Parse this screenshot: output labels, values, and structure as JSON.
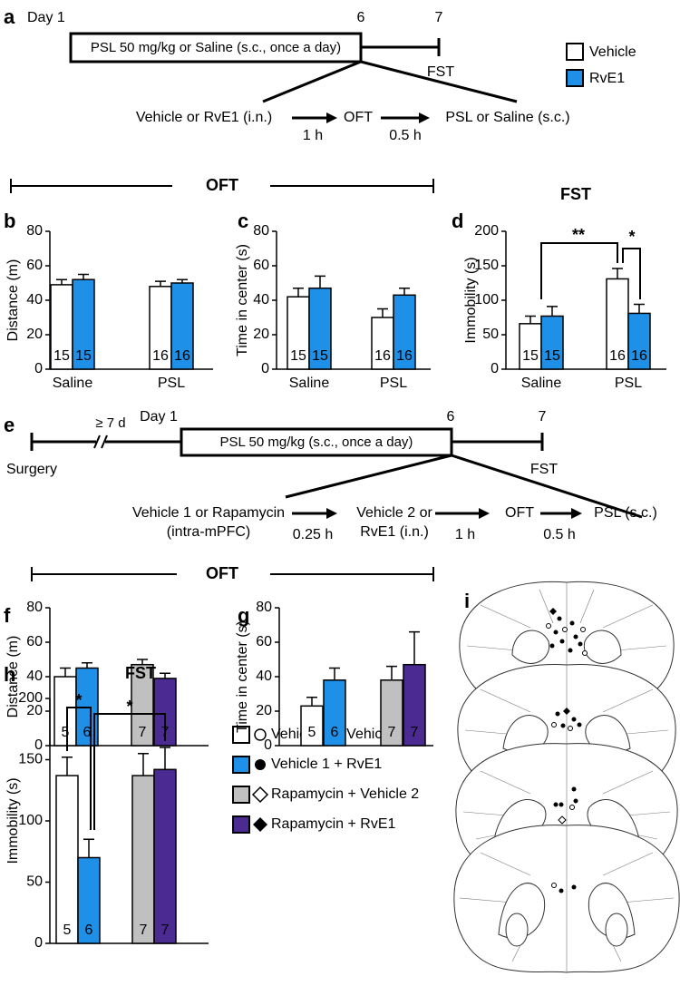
{
  "panel_labels": [
    "a",
    "b",
    "c",
    "d",
    "e",
    "f",
    "g",
    "h",
    "i"
  ],
  "timeline_a": {
    "day_labels": [
      "Day 1",
      "6",
      "7"
    ],
    "box": "PSL 50 mg/kg or Saline (s.c., once a day)",
    "end": "FST",
    "steps": [
      "Vehicle or RvE1 (i.n.)",
      "OFT",
      "PSL or Saline (s.c.)"
    ],
    "intervals": [
      "1 h",
      "0.5 h"
    ]
  },
  "legend_a": {
    "items": [
      "Vehicle",
      "RvE1"
    ]
  },
  "section_headers": [
    "OFT",
    "OFT"
  ],
  "chart_data": [
    {
      "type": "bar",
      "ylabel": "Distance (m)",
      "categories": [
        "Saline",
        "PSL"
      ],
      "series": [
        {
          "color": "#ffffff",
          "values": [
            49,
            48
          ],
          "errors": [
            3,
            3
          ],
          "n": [
            15,
            16
          ]
        },
        {
          "color": "#1e90e8",
          "values": [
            52,
            50
          ],
          "errors": [
            3,
            2
          ],
          "n": [
            15,
            16
          ]
        }
      ],
      "ylim": [
        0,
        80
      ],
      "yticks": [
        0,
        20,
        40,
        60,
        80
      ]
    },
    {
      "type": "bar",
      "ylabel": "Time in center (s)",
      "categories": [
        "Saline",
        "PSL"
      ],
      "series": [
        {
          "color": "#ffffff",
          "values": [
            42,
            30
          ],
          "errors": [
            5,
            5
          ],
          "n": [
            15,
            16
          ]
        },
        {
          "color": "#1e90e8",
          "values": [
            47,
            43
          ],
          "errors": [
            7,
            4
          ],
          "n": [
            15,
            16
          ]
        }
      ],
      "ylim": [
        0,
        80
      ],
      "yticks": [
        0,
        20,
        40,
        60,
        80
      ]
    },
    {
      "type": "bar",
      "title": "FST",
      "ylabel": "Immobility (s)",
      "categories": [
        "Saline",
        "PSL"
      ],
      "series": [
        {
          "color": "#ffffff",
          "values": [
            66,
            131
          ],
          "errors": [
            11,
            15
          ],
          "n": [
            15,
            16
          ]
        },
        {
          "color": "#1e90e8",
          "values": [
            77,
            81
          ],
          "errors": [
            14,
            13
          ],
          "n": [
            15,
            16
          ]
        }
      ],
      "ylim": [
        0,
        200
      ],
      "yticks": [
        0,
        50,
        100,
        150,
        200
      ],
      "annotations": [
        "**",
        "*"
      ]
    },
    {
      "type": "bar",
      "ylabel": "Distance (m)",
      "values": [
        40,
        45,
        47,
        39
      ],
      "errors": [
        5,
        3,
        3,
        3
      ],
      "n": [
        5,
        6,
        7,
        7
      ],
      "colors": [
        "#ffffff",
        "#1e90e8",
        "#c0c0c0",
        "#4b2a91"
      ],
      "ylim": [
        0,
        80
      ],
      "yticks": [
        0,
        20,
        40,
        60,
        80
      ]
    },
    {
      "type": "bar",
      "ylabel": "Time in center (s)",
      "values": [
        23,
        38,
        38,
        47
      ],
      "errors": [
        5,
        7,
        8,
        19
      ],
      "n": [
        5,
        6,
        7,
        7
      ],
      "colors": [
        "#ffffff",
        "#1e90e8",
        "#c0c0c0",
        "#4b2a91"
      ],
      "ylim": [
        0,
        80
      ],
      "yticks": [
        0,
        20,
        40,
        60,
        80
      ]
    },
    {
      "type": "bar",
      "title": "FST",
      "ylabel": "Immobility (s)",
      "values": [
        137,
        70,
        137,
        142
      ],
      "errors": [
        15,
        15,
        18,
        18
      ],
      "n": [
        5,
        6,
        7,
        7
      ],
      "colors": [
        "#ffffff",
        "#1e90e8",
        "#c0c0c0",
        "#4b2a91"
      ],
      "ylim": [
        0,
        200
      ],
      "yticks": [
        0,
        50,
        100,
        150,
        200
      ],
      "annotations": [
        "*",
        "*"
      ]
    }
  ],
  "timeline_e": {
    "gap": "≥ 7 d",
    "day_labels": [
      "Day 1",
      "6",
      "7"
    ],
    "box": "PSL 50 mg/kg (s.c., once a day)",
    "start": "Surgery",
    "end": "FST",
    "steps": [
      [
        "Vehicle 1 or Rapamycin",
        "(intra-mPFC)"
      ],
      [
        "Vehicle 2 or",
        "RvE1 (i.n.)"
      ],
      [
        "OFT"
      ],
      [
        "PSL (s.c.)"
      ]
    ],
    "intervals": [
      "0.25 h",
      "1 h",
      "0.5 h"
    ]
  },
  "legend_h": {
    "items": [
      "Vehicle 1 + Vehicle 2",
      "Vehicle 1 + RvE1",
      "Rapamycin + Vehicle 2",
      "Rapamycin + RvE1"
    ]
  }
}
